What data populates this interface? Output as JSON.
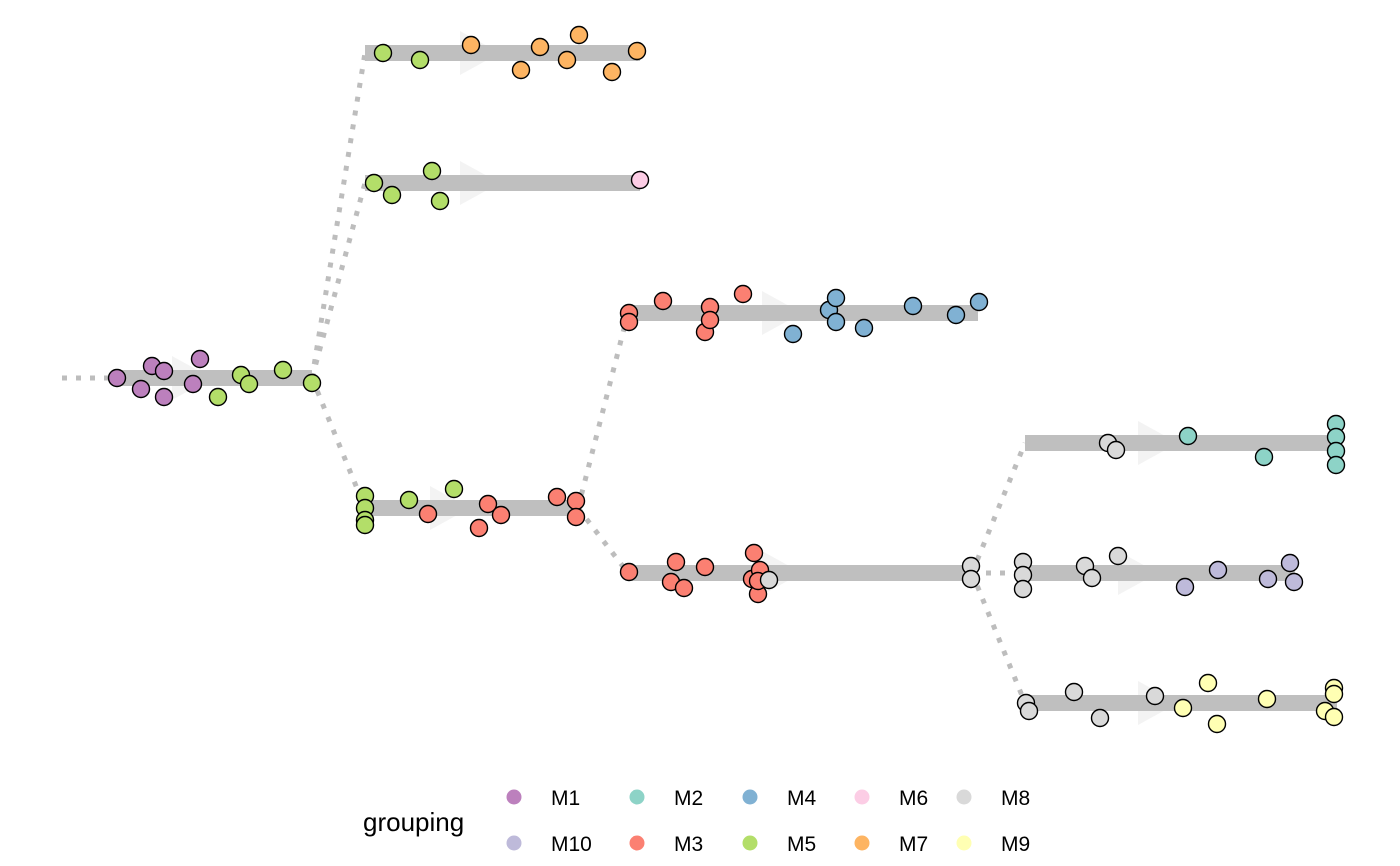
{
  "legend": {
    "title": "grouping",
    "items": [
      {
        "label": "M1",
        "color": "#BC80BD"
      },
      {
        "label": "M2",
        "color": "#8DD3C7"
      },
      {
        "label": "M4",
        "color": "#80B1D3"
      },
      {
        "label": "M6",
        "color": "#FCCDE5"
      },
      {
        "label": "M8",
        "color": "#D9D9D9"
      },
      {
        "label": "M10",
        "color": "#BEBADA"
      },
      {
        "label": "M3",
        "color": "#FB8072"
      },
      {
        "label": "M5",
        "color": "#B3DE69"
      },
      {
        "label": "M7",
        "color": "#FDB462"
      },
      {
        "label": "M9",
        "color": "#FFFFB3"
      }
    ]
  },
  "branches": [
    {
      "id": "root",
      "cells": {
        "M1": 7,
        "M5": 5
      }
    },
    {
      "id": "root-a",
      "cells": {
        "M5": 2,
        "M7": 7
      }
    },
    {
      "id": "root-b",
      "cells": {
        "M5": 4,
        "M6": 1
      }
    },
    {
      "id": "root-c",
      "cells": {
        "M5": 6,
        "M3": 7
      }
    },
    {
      "id": "root-c-1",
      "cells": {
        "M3": 7,
        "M4": 8
      }
    },
    {
      "id": "root-c-2",
      "cells": {
        "M3": 10,
        "M8": 3
      }
    },
    {
      "id": "root-c-2-a",
      "cells": {
        "M8": 2,
        "M2": 6
      }
    },
    {
      "id": "root-c-2-b",
      "cells": {
        "M8": 6,
        "M10": 5
      }
    },
    {
      "id": "root-c-2-c",
      "cells": {
        "M8": 5,
        "M9": 8
      }
    }
  ]
}
